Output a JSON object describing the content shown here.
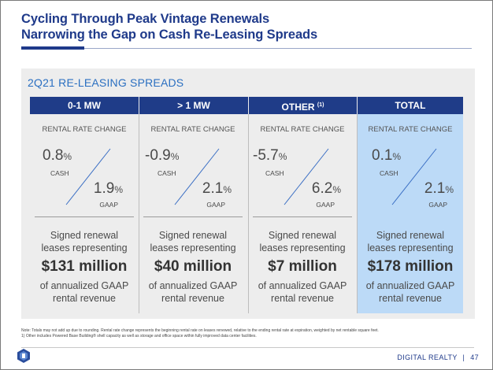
{
  "title": {
    "line1": "Cycling Through Peak Vintage Renewals",
    "line2": "Narrowing the Gap on Cash Re-Leasing Spreads"
  },
  "panel_title": "2Q21 RE-LEASING SPREADS",
  "columns": [
    {
      "header": "0-1 MW",
      "header_sup": "",
      "rr_label": "RENTAL RATE CHANGE",
      "cash": "0.8",
      "cash_unit": "%",
      "cash_label": "CASH",
      "gaap": "1.9",
      "gaap_unit": "%",
      "gaap_label": "GAAP",
      "desc_top_1": "Signed renewal",
      "desc_top_2": "leases representing",
      "amount": "$131 million",
      "desc_bottom_1": "of annualized GAAP",
      "desc_bottom_2": "rental revenue"
    },
    {
      "header": "> 1 MW",
      "header_sup": "",
      "rr_label": "RENTAL RATE CHANGE",
      "cash": "-0.9",
      "cash_unit": "%",
      "cash_label": "CASH",
      "gaap": "2.1",
      "gaap_unit": "%",
      "gaap_label": "GAAP",
      "desc_top_1": "Signed renewal",
      "desc_top_2": "leases representing",
      "amount": "$40 million",
      "desc_bottom_1": "of annualized GAAP",
      "desc_bottom_2": "rental revenue"
    },
    {
      "header": "OTHER",
      "header_sup": "(1)",
      "rr_label": "RENTAL RATE CHANGE",
      "cash": "-5.7",
      "cash_unit": "%",
      "cash_label": "CASH",
      "gaap": "6.2",
      "gaap_unit": "%",
      "gaap_label": "GAAP",
      "desc_top_1": "Signed renewal",
      "desc_top_2": "leases representing",
      "amount": "$7 million",
      "desc_bottom_1": "of annualized GAAP",
      "desc_bottom_2": "rental revenue"
    },
    {
      "header": "TOTAL",
      "header_sup": "",
      "rr_label": "RENTAL RATE CHANGE",
      "cash": "0.1",
      "cash_unit": "%",
      "cash_label": "CASH",
      "gaap": "2.1",
      "gaap_unit": "%",
      "gaap_label": "GAAP",
      "desc_top_1": "Signed renewal",
      "desc_top_2": "leases representing",
      "amount": "$178 million",
      "desc_bottom_1": "of annualized GAAP",
      "desc_bottom_2": "rental revenue"
    }
  ],
  "notes": {
    "line1": "Note:  Totals may not add up due to rounding.  Rental rate change represents the beginning rental rate on leases renewed, relative to the ending rental rate at expiration, weighted by net rentable square feet.",
    "line2": "1)  Other includes Powered Base Building® shell capacity as well as storage and office space within fully improved data center facilities."
  },
  "footer": {
    "company": "DIGITAL REALTY",
    "separator": "|",
    "page": "47"
  },
  "colors": {
    "navy": "#1f3c88",
    "accent_blue": "#2a6fc1",
    "total_highlight": "#bcdaf7",
    "panel": "#ededed"
  }
}
